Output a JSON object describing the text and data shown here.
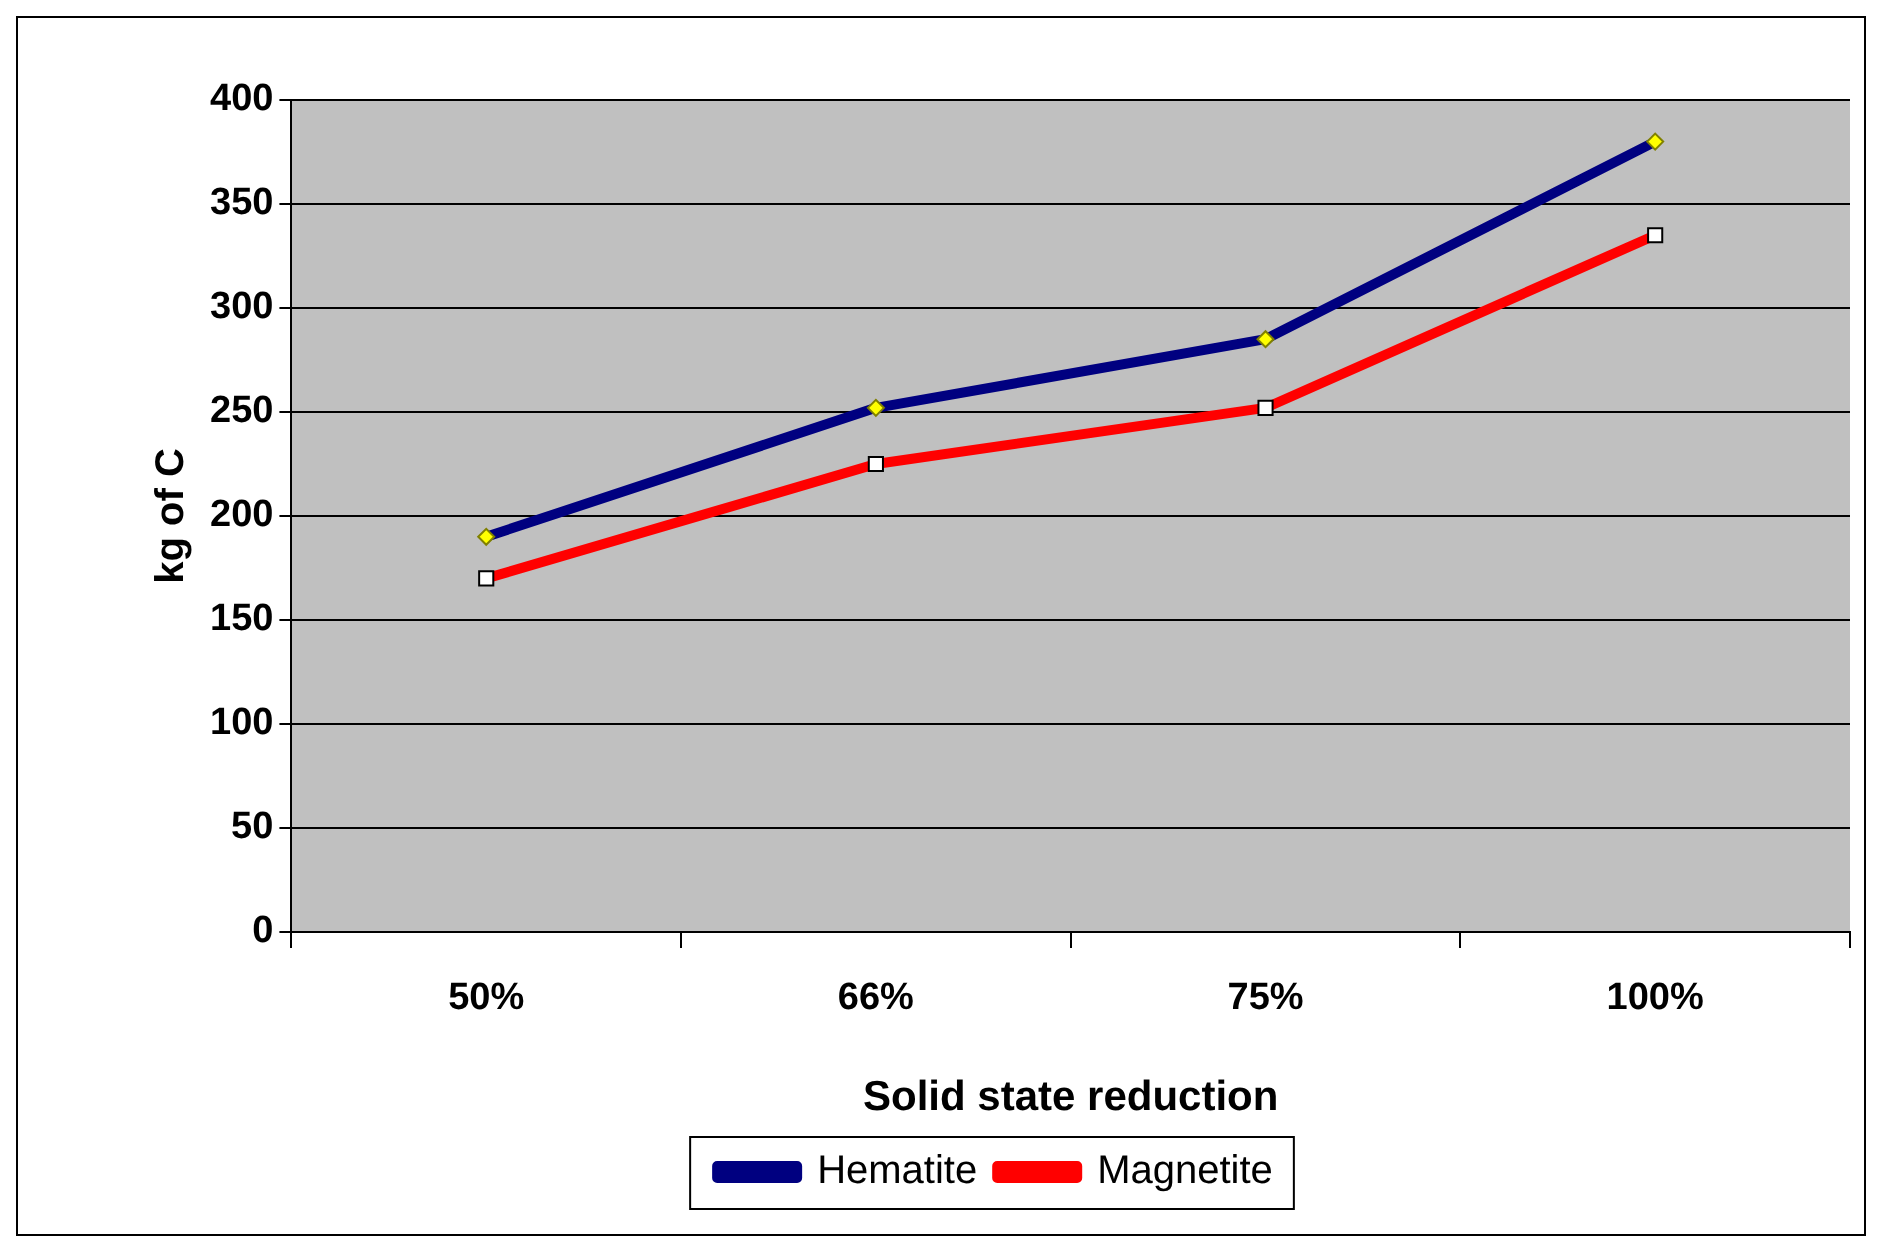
{
  "chart_data": {
    "type": "line",
    "xlabel": "Solid state reduction",
    "ylabel": "kg of C",
    "categories": [
      "50%",
      "66%",
      "75%",
      "100%"
    ],
    "series": [
      {
        "name": "Hematite",
        "color": "#000080",
        "values": [
          190,
          252,
          285,
          380
        ],
        "marker": "diamond"
      },
      {
        "name": "Magnetite",
        "color": "#ff0000",
        "values": [
          170,
          225,
          252,
          335
        ],
        "marker": "square"
      }
    ],
    "ylim": [
      0,
      400
    ],
    "yticks": [
      0,
      50,
      100,
      150,
      200,
      250,
      300,
      350,
      400
    ],
    "grid": "y",
    "legend": "bottom"
  }
}
